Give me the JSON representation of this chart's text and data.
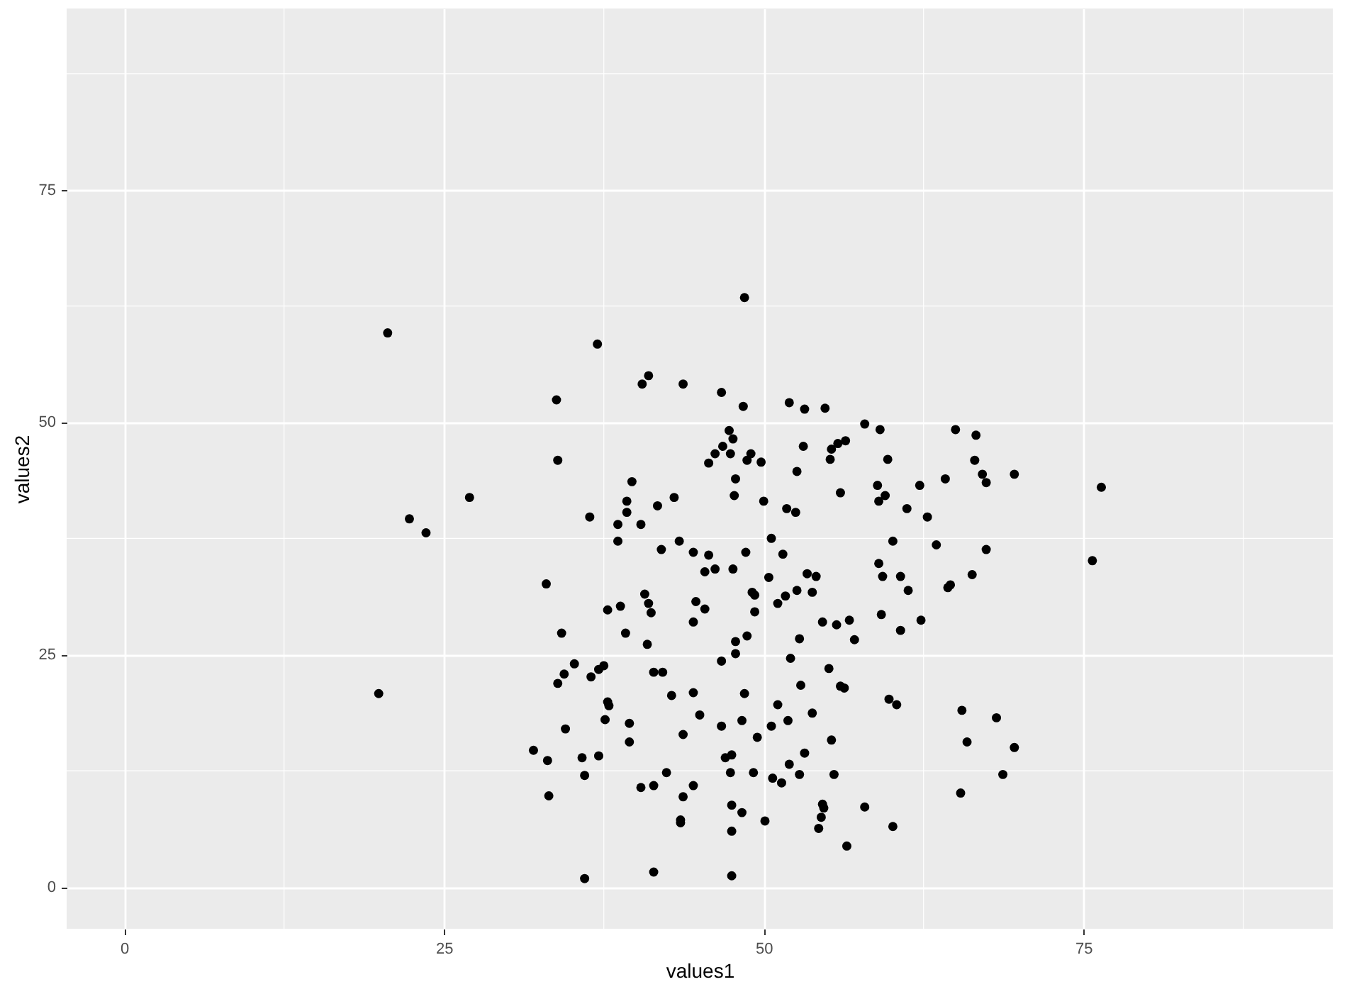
{
  "chart_data": {
    "type": "scatter",
    "xlabel": "values1",
    "ylabel": "values2",
    "xlim": [
      -4.5,
      94.5
    ],
    "ylim": [
      -4.5,
      94.5
    ],
    "xticks": [
      0,
      25,
      50,
      75
    ],
    "yticks": [
      0,
      25,
      50,
      75
    ],
    "grid": true,
    "marker": "circle",
    "series": [
      {
        "color": "#000000",
        "x": [
          48.5,
          20.6,
          37.0,
          41.0,
          40.5,
          43.7,
          46.7,
          48.4,
          33.8,
          47.3,
          47.6,
          46.8,
          46.2,
          47.4,
          45.7,
          47.8,
          47.7,
          33.9,
          39.7,
          39.3,
          39.3,
          38.6,
          40.4,
          41.7,
          43.0,
          27.0,
          36.4,
          22.3,
          23.6,
          38.6,
          42.0,
          43.4,
          44.5,
          45.7,
          48.6,
          45.4,
          46.2,
          47.6,
          48.7,
          52.0,
          53.2,
          54.8,
          57.9,
          59.1,
          65.0,
          66.6,
          49.0,
          49.8,
          53.1,
          55.3,
          55.8,
          56.4,
          55.2,
          59.7,
          52.6,
          66.5,
          67.1,
          67.4,
          69.6,
          76.4,
          64.2,
          62.2,
          58.9,
          56.0,
          59.5,
          59.0,
          61.2,
          62.8,
          50.0,
          51.8,
          52.5,
          50.6,
          51.5,
          60.1,
          63.5,
          67.4,
          75.7,
          59.0,
          50.4,
          53.4,
          54.1,
          59.3,
          60.7,
          66.3,
          33.0,
          40.7,
          41.0,
          41.2,
          37.8,
          38.8,
          44.7,
          45.4,
          44.5,
          34.2,
          39.2,
          40.9,
          47.8,
          48.7,
          46.7,
          47.8,
          35.2,
          34.4,
          33.9,
          36.5,
          37.1,
          37.5,
          41.4,
          42.1,
          19.9,
          42.8,
          44.5,
          48.5,
          37.8,
          37.9,
          37.6,
          39.5,
          45.0,
          46.7,
          48.3,
          34.5,
          39.5,
          43.7,
          32.0,
          33.1,
          35.8,
          37.1,
          47.0,
          47.5,
          36.0,
          33.2,
          42.4,
          40.4,
          41.4,
          44.5,
          47.4,
          43.7,
          43.5,
          43.5,
          47.5,
          48.3,
          47.5,
          36.0,
          41.4,
          47.5,
          49.1,
          49.3,
          52.6,
          53.8,
          51.7,
          51.1,
          49.3,
          61.3,
          64.4,
          64.6,
          54.6,
          55.7,
          56.7,
          59.2,
          62.3,
          60.7,
          52.8,
          57.1,
          52.1,
          55.1,
          52.9,
          56.0,
          56.3,
          59.8,
          60.4,
          65.5,
          68.2,
          51.1,
          53.8,
          51.9,
          50.6,
          49.5,
          55.3,
          65.9,
          69.6,
          53.2,
          52.0,
          49.2,
          50.7,
          51.4,
          52.8,
          55.5,
          68.7,
          65.4,
          54.6,
          54.7,
          54.5,
          54.3,
          57.9,
          50.1,
          60.1,
          56.5
        ],
        "values": [
          63.4,
          59.6,
          58.4,
          55.0,
          54.1,
          54.1,
          53.2,
          51.7,
          52.4,
          49.1,
          48.2,
          47.4,
          46.6,
          46.6,
          45.6,
          43.9,
          42.1,
          45.9,
          43.6,
          41.5,
          40.3,
          39.0,
          39.0,
          41.0,
          41.9,
          41.9,
          39.8,
          39.6,
          38.1,
          37.2,
          36.3,
          37.2,
          36.0,
          35.7,
          36.0,
          33.9,
          34.2,
          34.2,
          45.9,
          52.1,
          51.4,
          51.5,
          49.8,
          49.2,
          49.2,
          48.6,
          46.6,
          45.7,
          47.4,
          47.1,
          47.7,
          48.0,
          46.0,
          46.0,
          44.7,
          45.9,
          44.4,
          43.5,
          44.4,
          43.0,
          43.9,
          43.2,
          43.2,
          42.4,
          42.1,
          41.5,
          40.7,
          39.8,
          41.5,
          40.7,
          40.3,
          37.5,
          35.8,
          37.2,
          36.8,
          36.3,
          35.1,
          34.8,
          33.3,
          33.7,
          33.4,
          33.4,
          33.4,
          33.6,
          32.6,
          31.5,
          30.5,
          29.5,
          29.8,
          30.2,
          30.7,
          29.9,
          28.5,
          27.3,
          27.3,
          26.1,
          26.4,
          27.0,
          24.3,
          25.1,
          24.0,
          22.9,
          21.9,
          22.6,
          23.4,
          23.8,
          23.1,
          23.1,
          20.8,
          20.6,
          20.9,
          20.8,
          19.9,
          19.5,
          18.0,
          17.6,
          18.5,
          17.3,
          17.9,
          17.0,
          15.6,
          16.4,
          14.7,
          13.6,
          13.9,
          14.1,
          13.9,
          14.2,
          12.0,
          9.8,
          12.3,
          10.7,
          10.9,
          10.9,
          12.3,
          9.7,
          7.2,
          6.9,
          8.8,
          8.0,
          6.0,
          0.9,
          1.6,
          1.2,
          31.7,
          31.4,
          31.9,
          31.7,
          31.3,
          30.5,
          29.6,
          31.9,
          32.2,
          32.5,
          28.5,
          28.2,
          28.7,
          29.3,
          28.7,
          27.6,
          26.7,
          26.6,
          24.6,
          23.5,
          21.7,
          21.6,
          21.4,
          20.2,
          19.6,
          19.0,
          18.2,
          19.6,
          18.7,
          17.9,
          17.3,
          16.1,
          15.8,
          15.6,
          15.0,
          14.4,
          13.2,
          12.3,
          11.7,
          11.2,
          12.1,
          12.1,
          12.1,
          10.1,
          8.9,
          8.5,
          7.5,
          6.3,
          8.6,
          7.1,
          6.5,
          4.4
        ]
      }
    ]
  }
}
